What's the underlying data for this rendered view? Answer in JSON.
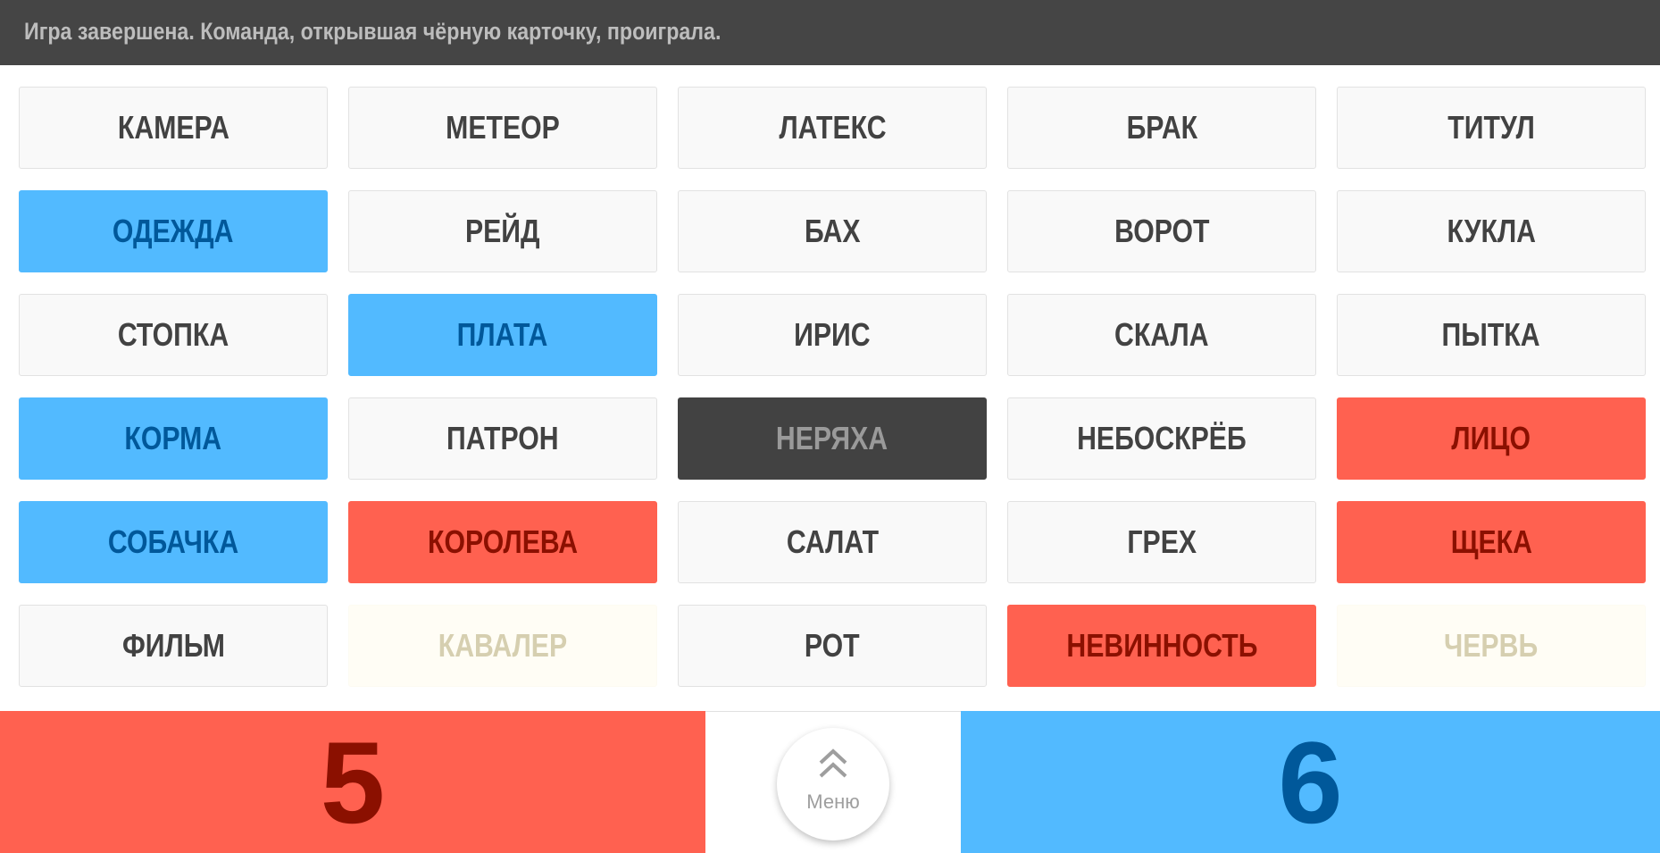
{
  "status": {
    "message": "Игра завершена. Команда, открывшая чёрную карточку, проиграла."
  },
  "colors": {
    "red": "#ff6150",
    "blue": "#52baff",
    "black": "#424242",
    "neutral": "#f9f9f9",
    "bystander": "#fffdf5",
    "header": "#454545"
  },
  "cards": [
    {
      "word": "КАМЕРА",
      "type": "unrevealed"
    },
    {
      "word": "МЕТЕОР",
      "type": "unrevealed"
    },
    {
      "word": "ЛАТЕКС",
      "type": "unrevealed"
    },
    {
      "word": "БРАК",
      "type": "unrevealed"
    },
    {
      "word": "ТИТУЛ",
      "type": "unrevealed"
    },
    {
      "word": "ОДЕЖДА",
      "type": "blue"
    },
    {
      "word": "РЕЙД",
      "type": "unrevealed"
    },
    {
      "word": "БАХ",
      "type": "unrevealed"
    },
    {
      "word": "ВОРОТ",
      "type": "unrevealed"
    },
    {
      "word": "КУКЛА",
      "type": "unrevealed"
    },
    {
      "word": "СТОПКА",
      "type": "unrevealed"
    },
    {
      "word": "ПЛАТА",
      "type": "blue"
    },
    {
      "word": "ИРИС",
      "type": "unrevealed"
    },
    {
      "word": "СКАЛА",
      "type": "unrevealed"
    },
    {
      "word": "ПЫТКА",
      "type": "unrevealed"
    },
    {
      "word": "КОРМА",
      "type": "blue"
    },
    {
      "word": "ПАТРОН",
      "type": "unrevealed"
    },
    {
      "word": "НЕРЯХА",
      "type": "black"
    },
    {
      "word": "НЕБОСКРЁБ",
      "type": "unrevealed"
    },
    {
      "word": "ЛИЦО",
      "type": "red"
    },
    {
      "word": "СОБАЧКА",
      "type": "blue"
    },
    {
      "word": "КОРОЛЕВА",
      "type": "red"
    },
    {
      "word": "САЛАТ",
      "type": "unrevealed"
    },
    {
      "word": "ГРЕХ",
      "type": "unrevealed"
    },
    {
      "word": "ЩЕКА",
      "type": "red"
    },
    {
      "word": "ФИЛЬМ",
      "type": "unrevealed"
    },
    {
      "word": "КАВАЛЕР",
      "type": "neutral-hidden"
    },
    {
      "word": "РОТ",
      "type": "unrevealed"
    },
    {
      "word": "НЕВИННОСТЬ",
      "type": "red"
    },
    {
      "word": "ЧЕРВЬ",
      "type": "neutral-hidden"
    }
  ],
  "scores": {
    "red": "5",
    "blue": "6"
  },
  "menu": {
    "label": "Меню",
    "icon": "double-chevron-up-icon"
  }
}
